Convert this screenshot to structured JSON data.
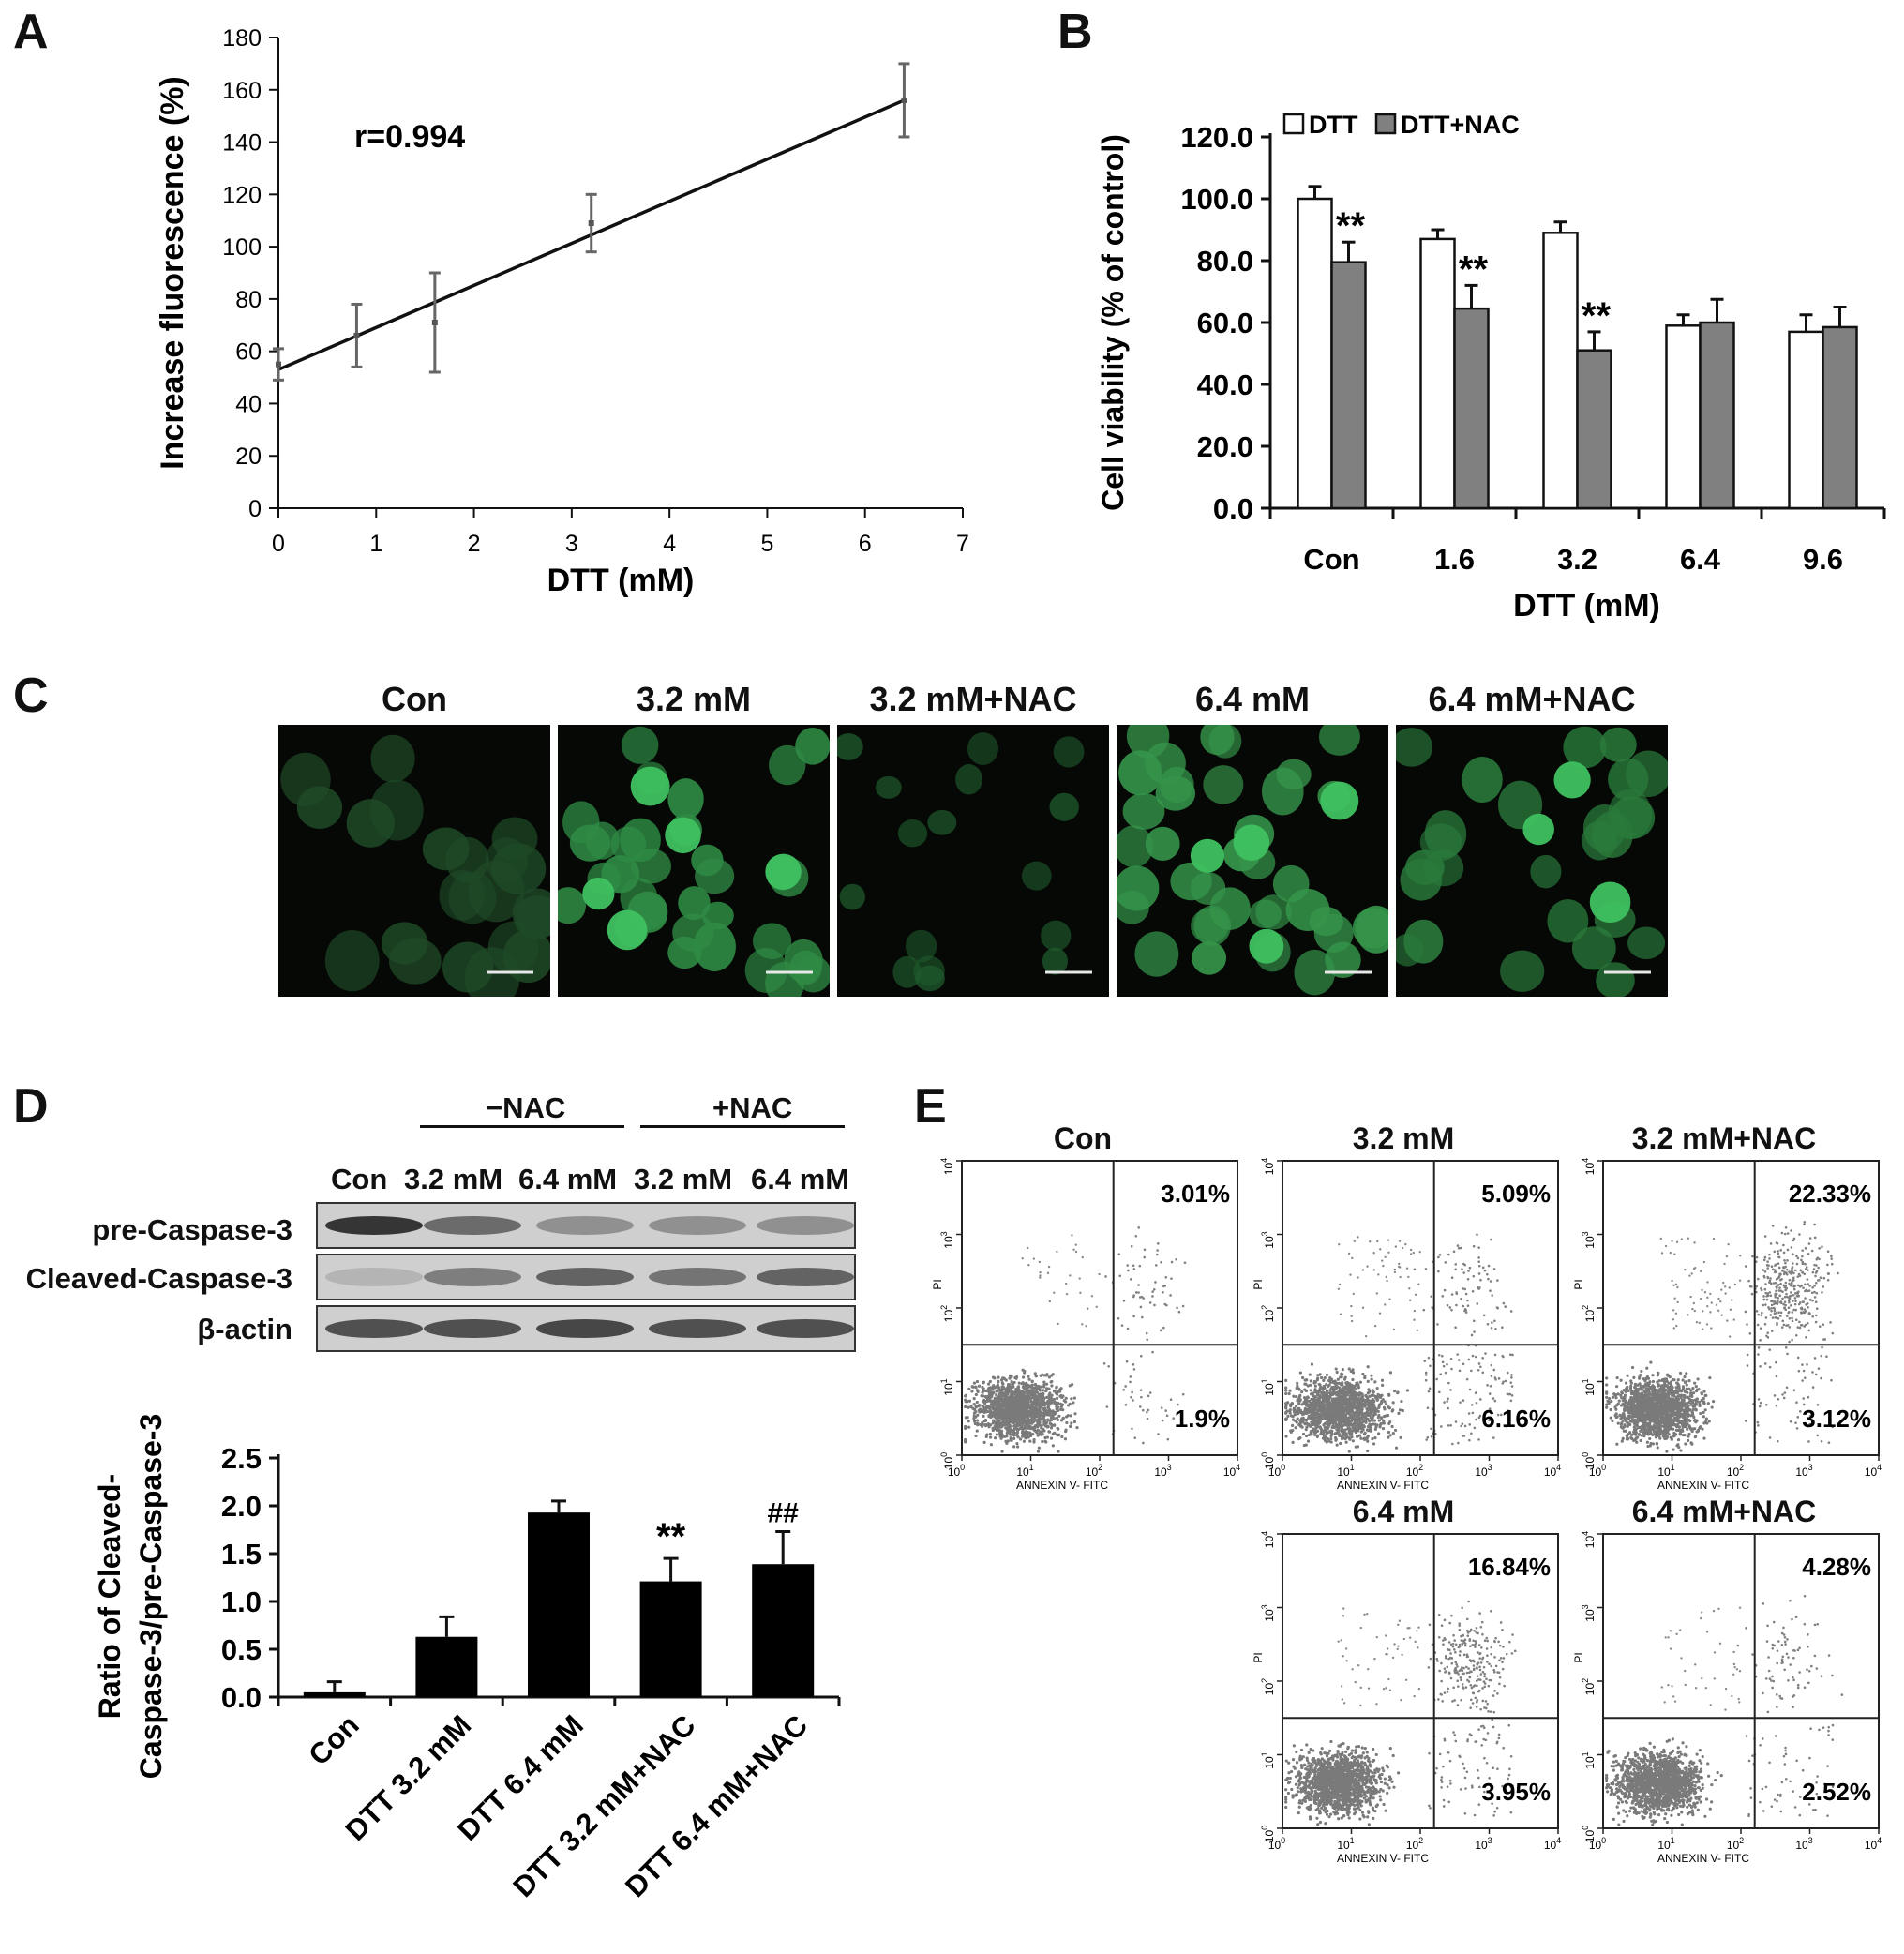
{
  "panels": {
    "A": "A",
    "B": "B",
    "C": "C",
    "D": "D",
    "E": "E"
  },
  "chart_data": [
    {
      "id": "A",
      "type": "line",
      "xlabel": "DTT (mM)",
      "ylabel": "Increase fluorescence (%)",
      "xlim": [
        0,
        7
      ],
      "ylim": [
        0,
        180
      ],
      "xticks": [
        "0",
        "1",
        "2",
        "3",
        "4",
        "5",
        "6",
        "7"
      ],
      "yticks": [
        "0",
        "20",
        "40",
        "60",
        "80",
        "100",
        "120",
        "140",
        "160",
        "180"
      ],
      "annotation": "r=0.994",
      "points": [
        {
          "x": 0,
          "y": 55,
          "err": 6
        },
        {
          "x": 0.8,
          "y": 66,
          "err": 12
        },
        {
          "x": 1.6,
          "y": 71,
          "err": 19
        },
        {
          "x": 3.2,
          "y": 109,
          "err": 11
        },
        {
          "x": 6.4,
          "y": 156,
          "err": 14
        }
      ],
      "fit": {
        "x": [
          0,
          6.4
        ],
        "y": [
          53,
          156
        ]
      }
    },
    {
      "id": "B",
      "type": "bar",
      "xlabel": "DTT (mM)",
      "ylabel": "Cell viability (% of control)",
      "ylim": [
        0,
        120
      ],
      "yticks": [
        "0.0",
        "20.0",
        "40.0",
        "60.0",
        "80.0",
        "100.0",
        "120.0"
      ],
      "categories": [
        "Con",
        "1.6",
        "3.2",
        "6.4",
        "9.6"
      ],
      "series": [
        {
          "name": "DTT",
          "color": "#ffffff",
          "values": [
            100,
            87,
            89,
            59,
            57
          ],
          "errors": [
            4,
            3,
            3.5,
            3.5,
            5.5
          ]
        },
        {
          "name": "DTT+NAC",
          "color": "#808080",
          "values": [
            79.5,
            64.5,
            51,
            60,
            58.5
          ],
          "errors": [
            6.5,
            7.5,
            6,
            7.5,
            6.5
          ]
        }
      ],
      "significance": [
        "**",
        "**",
        "**",
        "",
        ""
      ]
    },
    {
      "id": "D",
      "type": "bar",
      "ylabel": "Ratio of Cleaved-Caspase-3/pre-Caspase-3",
      "ylabel_lines": [
        "Ratio of Cleaved-",
        "Caspase-3/pre-Caspase-3"
      ],
      "ylim": [
        0,
        2.5
      ],
      "yticks": [
        "0.0",
        "0.5",
        "1.0",
        "1.5",
        "2.0",
        "2.5"
      ],
      "categories": [
        "Con",
        "DTT 3.2 mM",
        "DTT 6.4 mM",
        "DTT 3.2 mM+NAC",
        "DTT 6.4 mM+NAC"
      ],
      "values": [
        0.05,
        0.63,
        1.93,
        1.21,
        1.39
      ],
      "errors": [
        0.11,
        0.21,
        0.12,
        0.24,
        0.34
      ],
      "annotations": [
        "",
        "",
        "",
        "**",
        "##"
      ]
    }
  ],
  "micrographs": {
    "labels": [
      "Con",
      "3.2 mM",
      "3.2 mM+NAC",
      "6.4 mM",
      "6.4 mM+NAC"
    ]
  },
  "blot": {
    "group_minus": "−NAC",
    "group_plus": "+NAC",
    "lanes": [
      "Con",
      "3.2 mM",
      "6.4 mM",
      "3.2 mM",
      "6.4 mM"
    ],
    "rows": [
      "pre-Caspase-3",
      "Cleaved-Caspase-3",
      "β-actin"
    ]
  },
  "flow": {
    "xlabel": "ANNEXIN V- FITC",
    "ylabel": "PI",
    "ticks_base": "10",
    "ticks_exp": [
      "0",
      "1",
      "2",
      "3",
      "4"
    ],
    "plots": [
      {
        "title": "Con",
        "ur": "3.01%",
        "lr": "1.9%"
      },
      {
        "title": "3.2 mM",
        "ur": "5.09%",
        "lr": "6.16%"
      },
      {
        "title": "3.2 mM+NAC",
        "ur": "22.33%",
        "lr": "3.12%"
      },
      {
        "title": "6.4 mM",
        "ur": "16.84%",
        "lr": "3.95%"
      },
      {
        "title": "6.4 mM+NAC",
        "ur": "4.28%",
        "lr": "2.52%"
      }
    ]
  }
}
